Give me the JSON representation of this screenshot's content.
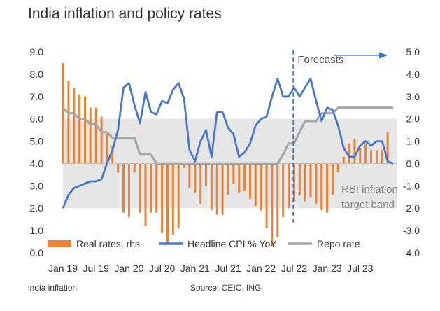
{
  "title": "India inflation and policy rates",
  "footer": {
    "left": "india inflation",
    "right": "Source: CEIC, ING"
  },
  "colors": {
    "real_rates": "#E8833A",
    "cpi": "#4A78C8",
    "repo": "#A6A6A6",
    "band": "#E6E6E6",
    "forecast_line": "#3C6FC4"
  },
  "annotations": {
    "forecasts": "Forecasts",
    "band_line1": "RBI inflation",
    "band_line2": "target band"
  },
  "chart_data": {
    "type": "line",
    "title": "India inflation and policy rates",
    "x_unit": "month",
    "x_start": "Jan 19",
    "n_points": 61,
    "x_tick_labels": [
      "Jan 19",
      "Jul 19",
      "Jan 20",
      "Jul 20",
      "Jan 21",
      "Jul 21",
      "Jan 22",
      "Jul 22",
      "Jan 23",
      "Jul 23"
    ],
    "x_tick_index": [
      0,
      6,
      12,
      18,
      24,
      30,
      36,
      42,
      48,
      54
    ],
    "y_left": {
      "ylim": [
        0,
        9
      ],
      "ticks": [
        "0.0",
        "1.0",
        "2.0",
        "3.0",
        "4.0",
        "5.0",
        "6.0",
        "7.0",
        "8.0",
        "9.0"
      ]
    },
    "y_right": {
      "ylim": [
        -4,
        5
      ],
      "ticks": [
        "-4.0",
        "-3.0",
        "-2.0",
        "-1.0",
        "0.0",
        "1.0",
        "2.0",
        "3.0",
        "4.0",
        "5.0"
      ]
    },
    "band": {
      "axis": "left",
      "from": 2.0,
      "to": 6.0,
      "label": "RBI inflation target band"
    },
    "forecast_start_index": 42,
    "forecast_label": "Forecasts",
    "grid": false,
    "legend_position": "bottom",
    "series": [
      {
        "name": "Real rates, rhs",
        "kind": "bar",
        "axis": "right",
        "values": [
          4.5,
          3.7,
          3.4,
          3.1,
          3.0,
          2.5,
          2.5,
          2.1,
          1.3,
          0.8,
          -0.4,
          -2.2,
          -2.4,
          -0.4,
          -2.2,
          -2.8,
          -2.2,
          -2.2,
          -3.1,
          -3.6,
          -3.2,
          -2.9,
          -0.2,
          -1.1,
          -1.3,
          -1.8,
          -1.0,
          -2.1,
          -2.3,
          -2.3,
          -1.4,
          -0.9,
          -1.3,
          -1.2,
          -1.6,
          -1.9,
          -2.1,
          -2.9,
          -3.7,
          -3.3,
          -2.4,
          -2.0,
          -1.7,
          -1.4,
          -1.7,
          -1.5,
          -1.8,
          -2.1,
          -2.2,
          -1.4,
          -0.4,
          0.3,
          0.9,
          1.1,
          0.7,
          0.9,
          0.6,
          0.6,
          0.6,
          1.4,
          0.0
        ]
      },
      {
        "name": "Headline CPI % YoY",
        "kind": "line",
        "axis": "left",
        "values": [
          2.0,
          2.6,
          2.9,
          3.0,
          3.1,
          3.2,
          3.2,
          3.3,
          4.0,
          4.6,
          5.5,
          7.4,
          7.6,
          6.6,
          5.8,
          7.2,
          6.3,
          6.2,
          6.8,
          6.7,
          7.3,
          7.6,
          6.9,
          4.6,
          4.1,
          5.0,
          5.5,
          4.3,
          6.3,
          6.3,
          5.6,
          5.3,
          4.3,
          4.5,
          4.9,
          5.7,
          6.0,
          6.1,
          7.0,
          7.8,
          7.0,
          7.0,
          7.4,
          7.0,
          7.4,
          7.8,
          6.8,
          5.9,
          6.5,
          6.4,
          5.7,
          4.7,
          4.3,
          4.3,
          4.8,
          5.0,
          4.8,
          5.0,
          5.0,
          4.1,
          4.0
        ]
      },
      {
        "name": "Repo rate",
        "kind": "line",
        "axis": "left",
        "values": [
          6.5,
          6.25,
          6.25,
          6.0,
          6.0,
          5.75,
          5.75,
          5.4,
          5.4,
          5.15,
          5.15,
          5.15,
          5.15,
          5.15,
          4.4,
          4.4,
          4.4,
          4.0,
          4.0,
          4.0,
          4.0,
          4.0,
          4.0,
          4.0,
          4.0,
          4.0,
          4.0,
          4.0,
          4.0,
          4.0,
          4.0,
          4.0,
          4.0,
          4.0,
          4.0,
          4.0,
          4.0,
          4.0,
          4.0,
          4.0,
          4.4,
          4.9,
          4.9,
          5.4,
          5.9,
          5.9,
          5.9,
          6.25,
          6.25,
          6.25,
          6.5,
          6.5,
          6.5,
          6.5,
          6.5,
          6.5,
          6.5,
          6.5,
          6.5,
          6.5,
          6.5
        ]
      }
    ]
  }
}
